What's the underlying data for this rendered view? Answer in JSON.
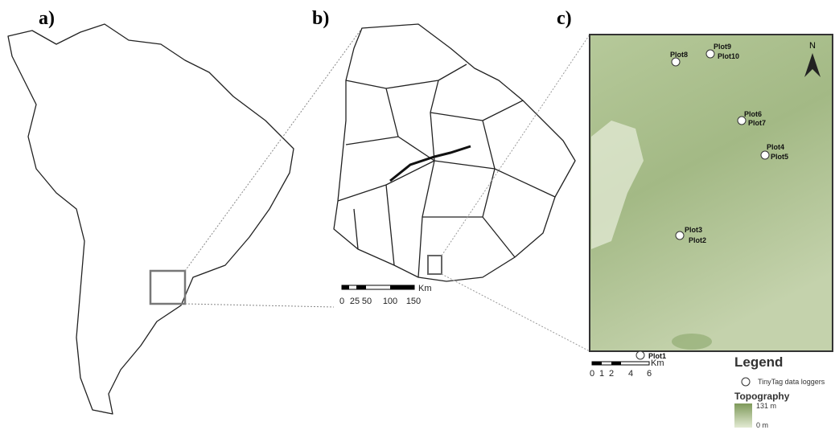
{
  "panels": {
    "a": {
      "label": "a)"
    },
    "b": {
      "label": "b)",
      "scale": {
        "ticks": [
          0,
          25,
          50,
          100,
          150
        ],
        "unit": "Km"
      }
    },
    "c": {
      "label": "c)",
      "north": "N",
      "plots": [
        "Plot1",
        "Plot2",
        "Plot3",
        "Plot4",
        "Plot5",
        "Plot6",
        "Plot7",
        "Plot8",
        "Plot9",
        "Plot10"
      ],
      "scale": {
        "ticks": [
          0,
          1,
          2,
          4,
          6
        ],
        "unit": "Km"
      },
      "legend": {
        "title": "Legend",
        "marker_label": "TinyTag data loggers",
        "topography": {
          "title": "Topography",
          "max": "131 m",
          "min": "0 m"
        }
      }
    }
  }
}
